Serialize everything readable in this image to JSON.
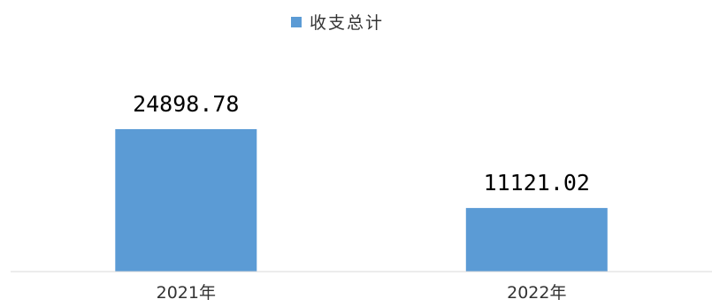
{
  "chart_data": {
    "type": "bar",
    "categories": [
      "2021年",
      "2022年"
    ],
    "series": [
      {
        "name": "收支总计",
        "values": [
          24898.78,
          11121.02
        ]
      }
    ],
    "data_labels": [
      "24898.78",
      "11121.02"
    ],
    "legend": {
      "position": "top-center"
    },
    "grid": false,
    "ylim": [
      0,
      30000
    ]
  },
  "colors": {
    "bar": "#5B9BD5",
    "axis": "#D9D9D9"
  }
}
